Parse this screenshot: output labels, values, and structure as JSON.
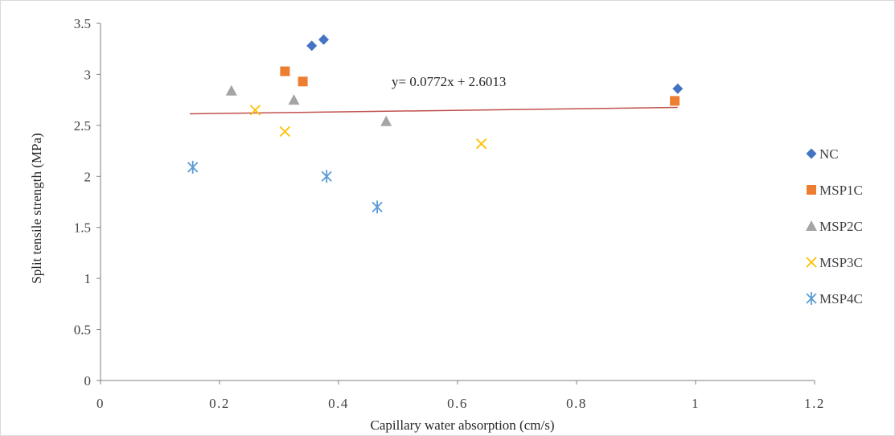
{
  "chart_data": {
    "type": "scatter",
    "title": "",
    "xlabel": "Capillary water absorption (cm/s)",
    "ylabel": "Split tensile strength (MPa)",
    "xlim": [
      0,
      1.2
    ],
    "ylim": [
      0,
      3.5
    ],
    "x_ticks": [
      "0",
      "0.2",
      "0.4",
      "0.6",
      "0.8",
      "1",
      "1.2"
    ],
    "y_ticks": [
      "0",
      "0.5",
      "1",
      "1.5",
      "2",
      "2.5",
      "3",
      "3.5"
    ],
    "grid": false,
    "legend_position": "right",
    "series": [
      {
        "name": "NC",
        "marker": "diamond",
        "color": "#4472c4",
        "points": [
          [
            0.355,
            3.28
          ],
          [
            0.375,
            3.34
          ],
          [
            0.97,
            2.86
          ]
        ]
      },
      {
        "name": "MSP1C",
        "marker": "square",
        "color": "#ed7d31",
        "points": [
          [
            0.31,
            3.03
          ],
          [
            0.34,
            2.93
          ],
          [
            0.965,
            2.74
          ]
        ]
      },
      {
        "name": "MSP2C",
        "marker": "triangle",
        "color": "#a5a5a5",
        "points": [
          [
            0.22,
            2.84
          ],
          [
            0.325,
            2.75
          ],
          [
            0.48,
            2.54
          ]
        ]
      },
      {
        "name": "MSP3C",
        "marker": "x",
        "color": "#ffc000",
        "points": [
          [
            0.26,
            2.65
          ],
          [
            0.31,
            2.44
          ],
          [
            0.64,
            2.32
          ]
        ]
      },
      {
        "name": "MSP4C",
        "marker": "star",
        "color": "#5b9bd5",
        "points": [
          [
            0.155,
            2.09
          ],
          [
            0.38,
            2.0
          ],
          [
            0.465,
            1.7
          ]
        ]
      }
    ],
    "trendline": {
      "label": "y= 0.0772x + 2.6013",
      "slope": 0.0772,
      "intercept": 2.6013,
      "x_range": [
        0.15,
        0.97
      ],
      "color": "#c0504d"
    }
  }
}
